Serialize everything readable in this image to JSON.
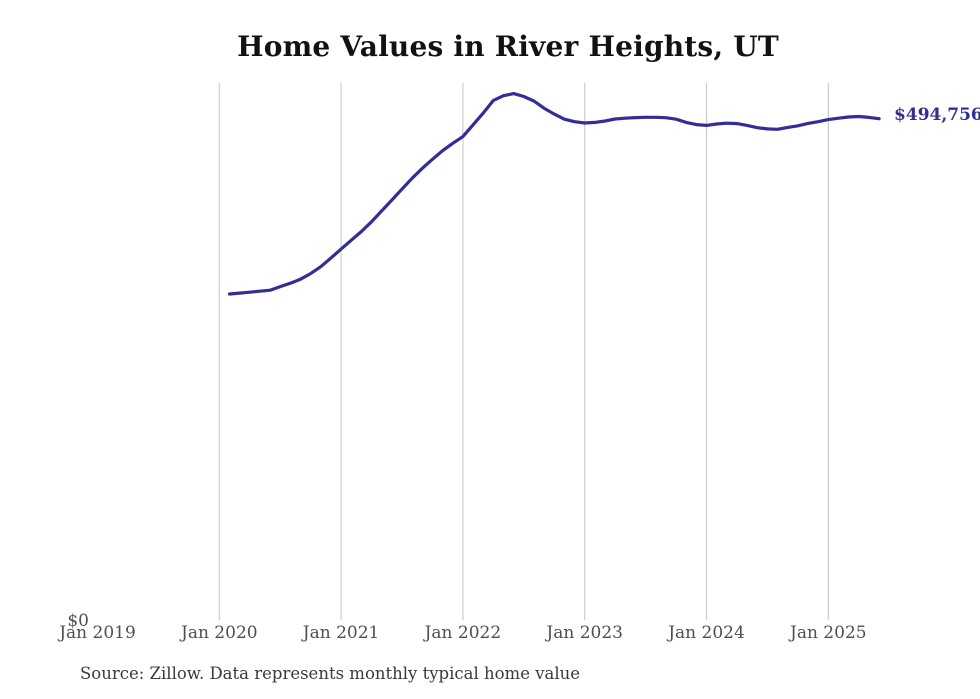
{
  "page": {
    "background": "#ffffff"
  },
  "chart_data": {
    "type": "line",
    "title": "Home Values in River Heights, UT",
    "source_note": "Source: Zillow. Data represents monthly typical home value",
    "end_label": "$494,756",
    "final_value": 494756,
    "colors": {
      "line": "#322e96",
      "grid": "#cccccc",
      "tick_text": "#4f4f4f",
      "title_text": "#121212",
      "source_text": "#3a3a3a",
      "background": "#ffffff"
    },
    "x_axis": {
      "tick_labels": [
        "Jan 2019",
        "Jan 2020",
        "Jan 2021",
        "Jan 2022",
        "Jan 2023",
        "Jan 2024",
        "Jan 2025"
      ],
      "gridline_ticks": [
        "Jan 2020",
        "Jan 2021",
        "Jan 2022",
        "Jan 2023",
        "Jan 2024",
        "Jan 2025"
      ]
    },
    "y_axis": {
      "tick_labels": [
        "$0"
      ],
      "range": [
        0,
        530000
      ],
      "unit": "USD"
    },
    "legend": {
      "visible": false
    },
    "grid": {
      "vertical": true,
      "horizontal": false
    },
    "series": [
      {
        "name": "Typical home value",
        "unit": "USD",
        "months": [
          "2020-02",
          "2020-03",
          "2020-04",
          "2020-05",
          "2020-06",
          "2020-07",
          "2020-08",
          "2020-09",
          "2020-10",
          "2020-11",
          "2020-12",
          "2021-01",
          "2021-02",
          "2021-03",
          "2021-04",
          "2021-05",
          "2021-06",
          "2021-07",
          "2021-08",
          "2021-09",
          "2021-10",
          "2021-11",
          "2021-12",
          "2022-01",
          "2022-02",
          "2022-03",
          "2022-04",
          "2022-05",
          "2022-06",
          "2022-07",
          "2022-08",
          "2022-09",
          "2022-10",
          "2022-11",
          "2022-12",
          "2023-01",
          "2023-02",
          "2023-03",
          "2023-04",
          "2023-05",
          "2023-06",
          "2023-07",
          "2023-08",
          "2023-09",
          "2023-10",
          "2023-11",
          "2023-12",
          "2024-01",
          "2024-02",
          "2024-03",
          "2024-04",
          "2024-05",
          "2024-06",
          "2024-07",
          "2024-08",
          "2024-09",
          "2024-10",
          "2024-11",
          "2024-12",
          "2025-01",
          "2025-02",
          "2025-03",
          "2025-04",
          "2025-05",
          "2025-06"
        ],
        "values": [
          321500,
          322400,
          323300,
          324200,
          325200,
          328800,
          332200,
          336100,
          341600,
          348500,
          357200,
          365900,
          374600,
          383200,
          392900,
          403600,
          414400,
          425100,
          435900,
          445700,
          454600,
          463100,
          470400,
          477000,
          488700,
          500300,
          512800,
          517400,
          519500,
          516700,
          512100,
          505100,
          499300,
          494200,
          491800,
          490500,
          491100,
          492400,
          494400,
          495200,
          495800,
          496100,
          496100,
          495700,
          494200,
          491100,
          488900,
          488100,
          489500,
          490300,
          489900,
          488100,
          485800,
          484600,
          484200,
          486100,
          487700,
          490100,
          491800,
          493800,
          495200,
          496400,
          496900,
          496000,
          494756
        ]
      }
    ]
  }
}
